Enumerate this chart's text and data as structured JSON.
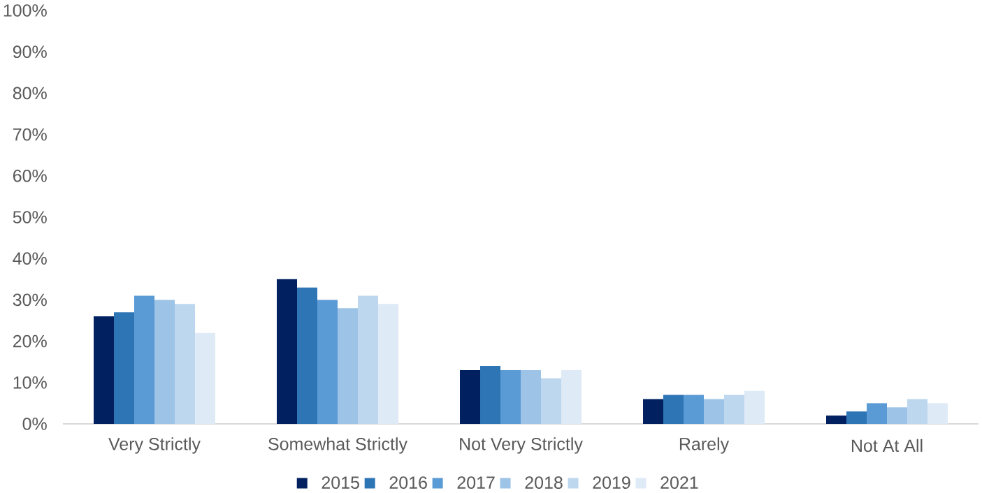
{
  "chart_data": {
    "type": "bar",
    "categories": [
      "Very Strictly",
      "Somewhat Strictly",
      "Not Very Strictly",
      "Rarely",
      "Not At All"
    ],
    "series": [
      {
        "name": "2015",
        "color": "#002060",
        "values": [
          26,
          35,
          13,
          6,
          2
        ]
      },
      {
        "name": "2016",
        "color": "#2E75B6",
        "values": [
          27,
          33,
          14,
          7,
          3
        ]
      },
      {
        "name": "2017",
        "color": "#5B9BD5",
        "values": [
          31,
          30,
          13,
          7,
          5
        ]
      },
      {
        "name": "2018",
        "color": "#9DC3E6",
        "values": [
          30,
          28,
          13,
          6,
          4
        ]
      },
      {
        "name": "2019",
        "color": "#BDD7EE",
        "values": [
          29,
          31,
          11,
          7,
          6
        ]
      },
      {
        "name": "2021",
        "color": "#DEEAF6",
        "values": [
          22,
          29,
          13,
          8,
          5
        ]
      }
    ],
    "ylim": [
      0,
      100
    ],
    "yticks": [
      {
        "value": 0,
        "label": "0%"
      },
      {
        "value": 10,
        "label": "10%"
      },
      {
        "value": 20,
        "label": "20%"
      },
      {
        "value": 30,
        "label": "30%"
      },
      {
        "value": 40,
        "label": "40%"
      },
      {
        "value": 50,
        "label": "50%"
      },
      {
        "value": 60,
        "label": "60%"
      },
      {
        "value": 70,
        "label": "70%"
      },
      {
        "value": 80,
        "label": "80%"
      },
      {
        "value": 90,
        "label": "90%"
      },
      {
        "value": 100,
        "label": "100%"
      }
    ],
    "legend": "bottom"
  }
}
